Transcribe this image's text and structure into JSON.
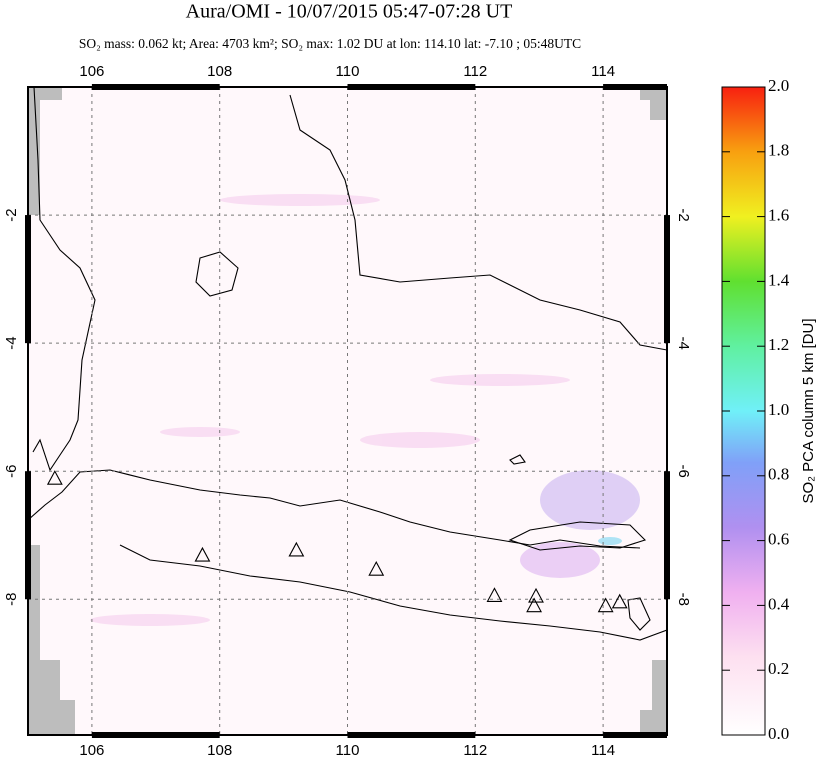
{
  "chart_data": {
    "type": "map",
    "title": "Aura/OMI - 10/07/2015 05:47-07:28 UT",
    "subtitle": "SO₂ mass: 0.062 kt; Area: 4703 km²; SO₂ max: 1.02 DU at lon: 114.10 lat: -7.10 ; 05:48UTC",
    "xlim": [
      105,
      115
    ],
    "xticks": [
      106,
      108,
      110,
      112,
      114
    ],
    "ylim": [
      -10.12,
      0
    ],
    "yticks": [
      -2,
      -4,
      -6,
      -8
    ],
    "grid": true,
    "colorbar": {
      "label": "SO₂ PCA column 5 km [DU]",
      "lim": [
        0,
        2
      ],
      "ticks": [
        {
          "value": 0,
          "label": "0.0"
        },
        {
          "value": 0.2,
          "label": "0.2"
        },
        {
          "value": 0.4,
          "label": "0.4"
        },
        {
          "value": 0.6,
          "label": "0.6"
        },
        {
          "value": 0.8,
          "label": "0.8"
        },
        {
          "value": 1,
          "label": "1.0"
        },
        {
          "value": 1.2,
          "label": "1.2"
        },
        {
          "value": 1.4,
          "label": "1.4"
        },
        {
          "value": 1.6,
          "label": "1.6"
        },
        {
          "value": 1.8,
          "label": "1.8"
        },
        {
          "value": 2,
          "label": "2.0"
        }
      ]
    },
    "volcanoes": {
      "lon": [
        105.42,
        107.73,
        109.2,
        110.45,
        112.3,
        112.95,
        112.92,
        114.04,
        114.26
      ],
      "lat": [
        -6.11,
        -7.31,
        -7.23,
        -7.53,
        -7.94,
        -7.95,
        -8.1,
        -8.1,
        -8.04
      ]
    }
  }
}
